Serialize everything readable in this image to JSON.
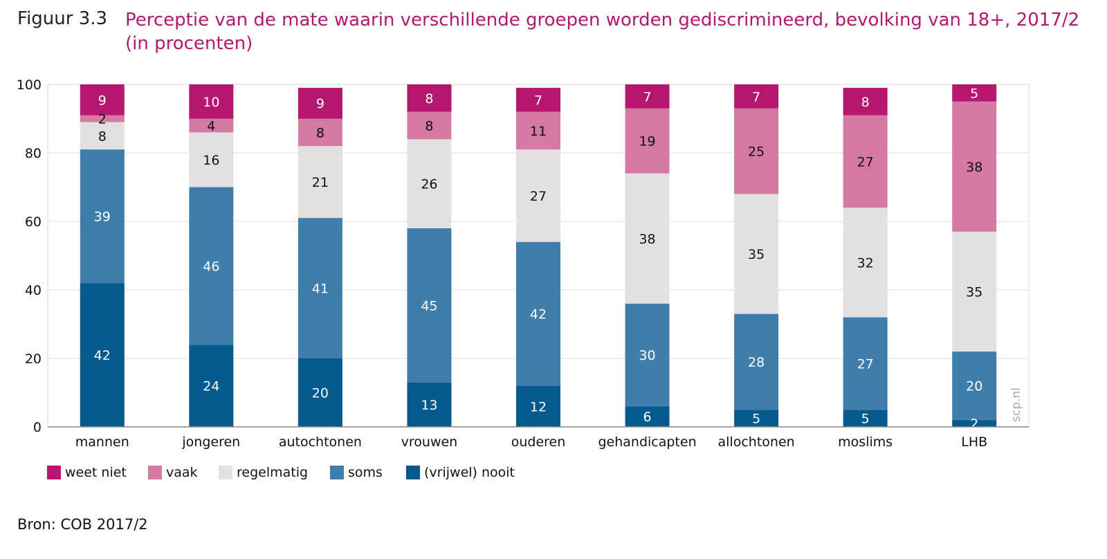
{
  "figure_label": "Figuur 3.3",
  "title": "Perceptie van de mate waarin verschillende groepen worden gediscrimineerd, bevolking van 18+, 2017/2 (in procenten)",
  "source": "Bron: COB 2017/2",
  "watermark": "scp.nl",
  "colors": {
    "weet_niet": "#b5166e",
    "vaak": "#d479a1",
    "regelmatig": "#e2e0e1",
    "soms": "#3f7eab",
    "vrijwel_nooit": "#045a8d",
    "grid": "#dddddd",
    "axis": "#888888"
  },
  "legend": [
    {
      "label": "weet niet",
      "color": "#b5166e"
    },
    {
      "label": "vaak",
      "color": "#d479a1"
    },
    {
      "label": "regelmatig",
      "color": "#e2e0e1"
    },
    {
      "label": "soms",
      "color": "#3f7eab"
    },
    {
      "label": "(vrijwel) nooit",
      "color": "#045a8d"
    }
  ],
  "chart_data": {
    "type": "bar",
    "stacked": true,
    "categories": [
      "mannen",
      "jongeren",
      "autochtonen",
      "vrouwen",
      "ouderen",
      "gehandicapten",
      "allochtonen",
      "moslims",
      "LHB"
    ],
    "series": [
      {
        "name": "(vrijwel) nooit",
        "color": "#045a8d",
        "label_color": "#ffffff",
        "values": [
          42,
          24,
          20,
          13,
          12,
          6,
          5,
          5,
          2
        ]
      },
      {
        "name": "soms",
        "color": "#3f7eab",
        "label_color": "#ffffff",
        "values": [
          39,
          46,
          41,
          45,
          42,
          30,
          28,
          27,
          20
        ]
      },
      {
        "name": "regelmatig",
        "color": "#e2e0e1",
        "label_color": "#111111",
        "values": [
          8,
          16,
          21,
          26,
          27,
          38,
          35,
          32,
          35
        ]
      },
      {
        "name": "vaak",
        "color": "#d479a1",
        "label_color": "#111111",
        "values": [
          2,
          4,
          8,
          8,
          11,
          19,
          25,
          27,
          38
        ]
      },
      {
        "name": "weet niet",
        "color": "#b5166e",
        "label_color": "#ffffff",
        "values": [
          9,
          10,
          9,
          8,
          7,
          7,
          7,
          8,
          5
        ]
      }
    ],
    "ylim": [
      0,
      100
    ],
    "yticks": [
      0,
      20,
      40,
      60,
      80,
      100
    ],
    "grid": true,
    "legend_position": "bottom-left",
    "xlabel": "",
    "ylabel": ""
  }
}
